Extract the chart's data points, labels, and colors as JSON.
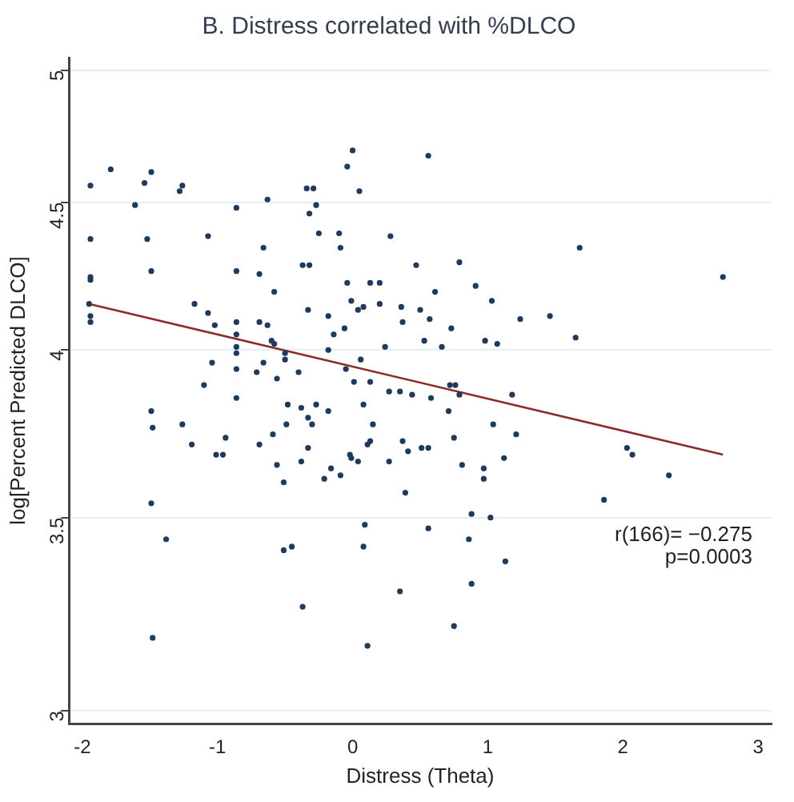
{
  "chart_data": {
    "type": "scatter",
    "title": "B. Distress correlated with %DLCO",
    "xlabel": "Distress (Theta)",
    "ylabel": "log[Percent Predicted DLCO]",
    "annotations": [
      "r(166)= −0.275",
      "p=0.0003"
    ],
    "xlim": [
      -2.1,
      3.1
    ],
    "xticks": [
      -2,
      -1,
      0,
      1,
      2,
      3
    ],
    "ylim": [
      2.97,
      5.05
    ],
    "yticks": [
      3,
      3.5,
      4,
      4.5,
      5
    ],
    "log": "y",
    "grid": "y",
    "legend": false,
    "series": [
      {
        "marker": "circle",
        "color": "#1f3a5a",
        "x": [
          -1.94,
          -1.79,
          -1.54,
          -1.49,
          -1.28,
          -1.26,
          -1.61,
          -1.94,
          -1.52,
          -1.94,
          -1.94,
          -1.49,
          -1.95,
          -1.94,
          -1.94,
          -1.07,
          -0.86,
          -0.63,
          -0.34,
          -0.29,
          -0.27,
          -0.32,
          -0.04,
          0.0,
          0.05,
          -0.25,
          -0.1,
          -0.09,
          -0.66,
          -0.86,
          -0.69,
          -0.37,
          -0.32,
          -0.58,
          -0.04,
          0.13,
          -0.01,
          0.04,
          0.08,
          -1.17,
          -1.07,
          -1.02,
          -0.86,
          -0.86,
          -0.69,
          -0.63,
          -0.33,
          -0.18,
          -0.14,
          -0.06,
          -0.6,
          -0.58,
          -0.86,
          -0.86,
          -0.5,
          -0.5,
          -0.18,
          0.06,
          -1.04,
          -0.86,
          -0.66,
          -0.71,
          -0.56,
          -0.4,
          -0.05,
          0.01,
          0.13,
          -1.1,
          -0.86,
          -1.49,
          -1.48,
          -1.26,
          -1.19,
          -1.01,
          -0.96,
          -0.94,
          -0.69,
          -0.59,
          -0.49,
          -0.48,
          -0.38,
          -0.33,
          -0.3,
          -0.27,
          -0.18,
          -0.33,
          -0.56,
          -0.38,
          0.08,
          0.15,
          0.11,
          0.13,
          -0.02,
          -0.01,
          0.04,
          -0.21,
          -0.16,
          -0.09,
          -0.51,
          -1.49,
          -1.38,
          -0.51,
          -0.45,
          0.09,
          0.08,
          -0.37,
          -1.48,
          0.11,
          0.56,
          0.28,
          0.47,
          0.79,
          1.68,
          2.74,
          0.2,
          0.2,
          0.36,
          0.37,
          0.5,
          0.57,
          0.61,
          0.91,
          1.03,
          0.73,
          0.53,
          0.66,
          0.24,
          0.98,
          1.07,
          1.24,
          1.46,
          1.65,
          0.27,
          0.35,
          0.44,
          0.72,
          0.76,
          0.79,
          0.58,
          1.18,
          0.71,
          0.37,
          0.75,
          1.04,
          1.21,
          0.41,
          0.51,
          0.56,
          1.12,
          0.27,
          0.81,
          0.97,
          0.97,
          2.03,
          2.07,
          2.34,
          0.39,
          1.86,
          0.88,
          1.02,
          0.56,
          0.86,
          1.13,
          0.35,
          0.88,
          0.75
        ],
        "values": [
          4.56,
          4.62,
          4.57,
          4.61,
          4.54,
          4.56,
          4.49,
          4.37,
          4.37,
          4.24,
          4.23,
          4.26,
          4.15,
          4.11,
          4.09,
          4.38,
          4.48,
          4.51,
          4.55,
          4.55,
          4.49,
          4.46,
          4.63,
          4.69,
          4.54,
          4.39,
          4.39,
          4.34,
          4.34,
          4.26,
          4.25,
          4.28,
          4.28,
          4.19,
          4.22,
          4.22,
          4.16,
          4.13,
          4.14,
          4.15,
          4.12,
          4.08,
          4.09,
          4.05,
          4.09,
          4.08,
          4.13,
          4.11,
          4.05,
          4.07,
          4.03,
          4.02,
          4.01,
          3.99,
          3.99,
          3.97,
          4.0,
          3.97,
          3.96,
          3.94,
          3.96,
          3.93,
          3.91,
          3.93,
          3.94,
          3.9,
          3.9,
          3.89,
          3.85,
          3.81,
          3.76,
          3.77,
          3.71,
          3.68,
          3.68,
          3.73,
          3.71,
          3.74,
          3.77,
          3.83,
          3.82,
          3.79,
          3.77,
          3.83,
          3.81,
          3.7,
          3.65,
          3.66,
          3.83,
          3.77,
          3.71,
          3.72,
          3.68,
          3.67,
          3.66,
          3.61,
          3.64,
          3.62,
          3.6,
          3.54,
          3.44,
          3.41,
          3.42,
          3.48,
          3.42,
          3.26,
          3.18,
          3.16,
          4.67,
          4.38,
          4.28,
          4.29,
          4.34,
          4.24,
          4.22,
          4.15,
          4.14,
          4.09,
          4.13,
          4.1,
          4.19,
          4.21,
          4.16,
          4.07,
          4.03,
          4.01,
          4.01,
          4.03,
          4.02,
          4.1,
          4.11,
          4.04,
          3.87,
          3.87,
          3.86,
          3.89,
          3.89,
          3.86,
          3.85,
          3.86,
          3.81,
          3.72,
          3.73,
          3.77,
          3.74,
          3.69,
          3.7,
          3.7,
          3.67,
          3.66,
          3.65,
          3.64,
          3.61,
          3.7,
          3.68,
          3.62,
          3.57,
          3.55,
          3.51,
          3.5,
          3.47,
          3.44,
          3.38,
          3.3,
          3.32,
          3.21
        ]
      },
      {
        "type": "line",
        "marker": "none",
        "color": "#8b2c2c",
        "x": [
          -1.95,
          2.74
        ],
        "values": [
          4.15,
          3.68
        ]
      }
    ]
  }
}
